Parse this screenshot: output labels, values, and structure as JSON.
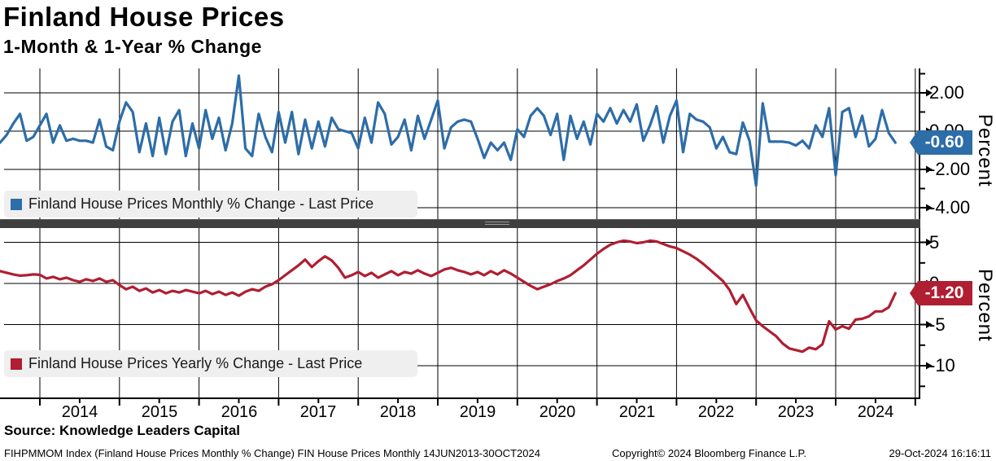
{
  "header": {
    "title": "Finland House Prices",
    "subtitle": "1-Month & 1-Year % Change"
  },
  "colors": {
    "monthly_line": "#2d6da8",
    "yearly_line": "#b01e32",
    "monthly_tag_bg": "#2d6da8",
    "yearly_tag_bg": "#b01e32",
    "legend_bg": "#efefef",
    "grid": "#000000"
  },
  "panels": {
    "top": {
      "legend_label": "Finland House Prices Monthly % Change - Last Price",
      "last_price_label": "-0.60",
      "axis_label": "Percent",
      "yticks": [
        "2.00",
        "0.00",
        "-2.00",
        "-4.00"
      ]
    },
    "bottom": {
      "legend_label": "Finland House Prices Yearly % Change - Last Price",
      "last_price_label": "-1.20",
      "axis_label": "Percent",
      "yticks": [
        "5",
        "0",
        "-5",
        "-10"
      ]
    }
  },
  "x_axis": {
    "years": [
      "2014",
      "2015",
      "2016",
      "2017",
      "2018",
      "2019",
      "2020",
      "2021",
      "2022",
      "2023",
      "2024"
    ]
  },
  "footer": {
    "source": "Source: Knowledge Leaders Capital",
    "info": "FIHPMMOM Index (Finland House Prices Monthly % Change) FIN House Prices  Monthly 14JUN2013-30OCT2024",
    "copyright": "Copyright© 2024 Bloomberg Finance L.P.",
    "datetime": "29-Oct-2024 16:16:11"
  },
  "chart_data": [
    {
      "type": "line",
      "name": "Finland House Prices Monthly % Change",
      "legend_position": "top-left inside panel",
      "x_start": 2013.5,
      "x_step_years": 0.0833,
      "x_range": [
        2013.5,
        2024.83
      ],
      "ylim": [
        -4.6,
        3.3
      ],
      "yticks_major": [
        2,
        0,
        -2,
        -4
      ],
      "yticks_minor": [
        3,
        1,
        -1,
        -3
      ],
      "grid": true,
      "last_price": -0.6,
      "values": [
        -0.6,
        -0.2,
        0.4,
        0.9,
        -0.5,
        -0.3,
        0.3,
        0.9,
        -0.6,
        0.3,
        -0.5,
        -0.4,
        -0.5,
        -0.5,
        -0.6,
        0.6,
        -0.8,
        -1.0,
        0.5,
        1.5,
        1.0,
        -1.1,
        0.4,
        -1.3,
        0.7,
        -1.2,
        0.5,
        1.1,
        -1.3,
        0.4,
        -0.9,
        1.1,
        -0.4,
        0.7,
        -1.0,
        0.4,
        2.9,
        -0.9,
        -1.3,
        0.9,
        -0.3,
        -1.1,
        1.0,
        -0.6,
        1.0,
        -1.2,
        0.6,
        -0.9,
        0.5,
        -0.8,
        0.7,
        0.1,
        0.0,
        -0.1,
        -0.9,
        0.7,
        -0.6,
        1.5,
        0.9,
        -0.7,
        -0.3,
        0.6,
        -1.0,
        0.8,
        -0.4,
        0.6,
        1.6,
        -0.9,
        0.2,
        0.5,
        0.6,
        0.5,
        -0.4,
        -1.4,
        -0.6,
        -1.0,
        -0.6,
        -1.5,
        0.1,
        -0.3,
        0.8,
        1.2,
        0.8,
        -0.2,
        0.9,
        -1.5,
        0.8,
        -0.4,
        0.5,
        -0.7,
        0.9,
        0.5,
        1.2,
        0.4,
        1.1,
        0.5,
        1.4,
        -0.5,
        0.3,
        1.3,
        -0.6,
        0.8,
        1.6,
        -1.1,
        0.9,
        0.6,
        0.5,
        0.2,
        -0.9,
        -0.3,
        -1.1,
        -1.2,
        0.45,
        -0.5,
        -2.85,
        1.45,
        -0.55,
        -0.55,
        -0.55,
        -0.6,
        -0.75,
        -0.5,
        -0.9,
        0.3,
        -0.3,
        1.2,
        -2.3,
        1.0,
        1.2,
        -0.3,
        0.8,
        -0.8,
        -0.4,
        1.1,
        -0.1,
        -0.6
      ]
    },
    {
      "type": "line",
      "name": "Finland House Prices Yearly % Change",
      "legend_position": "bottom-left inside panel",
      "x_start": 2013.5,
      "x_step_years": 0.0833,
      "x_range": [
        2013.5,
        2024.83
      ],
      "ylim": [
        -14,
        7
      ],
      "yticks_major": [
        5,
        0,
        -5,
        -10
      ],
      "yticks_minor": [
        2.5,
        -2.5,
        -7.5,
        -12.5
      ],
      "grid": true,
      "last_price": -1.2,
      "values": [
        1.5,
        1.3,
        1.1,
        0.95,
        1.0,
        1.1,
        1.05,
        0.6,
        0.8,
        0.5,
        0.7,
        0.4,
        0.2,
        0.5,
        0.3,
        0.6,
        0.2,
        0.4,
        -0.2,
        -0.7,
        -0.4,
        -0.9,
        -0.6,
        -1.1,
        -0.8,
        -1.2,
        -0.9,
        -1.1,
        -0.8,
        -1.0,
        -1.2,
        -0.9,
        -1.3,
        -1.0,
        -1.4,
        -1.1,
        -1.5,
        -1.0,
        -0.7,
        -0.9,
        -0.4,
        -0.1,
        0.4,
        1.0,
        1.6,
        2.2,
        2.9,
        2.0,
        2.7,
        3.3,
        2.8,
        1.9,
        0.7,
        1.0,
        1.4,
        0.9,
        1.3,
        0.7,
        1.1,
        1.5,
        1.0,
        1.4,
        1.2,
        1.6,
        1.2,
        0.9,
        1.3,
        1.7,
        1.9,
        1.6,
        1.4,
        1.1,
        1.4,
        1.0,
        1.5,
        1.1,
        1.6,
        1.2,
        0.7,
        0.2,
        -0.3,
        -0.7,
        -0.4,
        -0.1,
        0.3,
        0.6,
        1.0,
        1.6,
        2.2,
        2.9,
        3.6,
        4.2,
        4.7,
        5.0,
        5.2,
        5.1,
        4.9,
        5.0,
        5.2,
        5.1,
        4.8,
        4.5,
        4.3,
        3.9,
        3.5,
        3.0,
        2.4,
        1.7,
        1.0,
        0.3,
        -0.8,
        -2.5,
        -1.4,
        -3.0,
        -4.5,
        -5.2,
        -5.8,
        -6.4,
        -7.3,
        -7.9,
        -8.1,
        -8.3,
        -7.8,
        -8.0,
        -7.4,
        -4.6,
        -5.6,
        -5.2,
        -5.5,
        -4.4,
        -4.3,
        -4.0,
        -3.4,
        -3.4,
        -2.9,
        -1.2
      ]
    }
  ]
}
